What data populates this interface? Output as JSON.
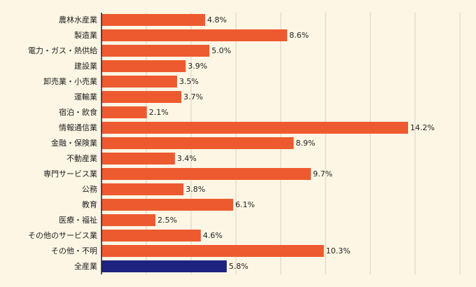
{
  "chart_data": {
    "type": "bar",
    "orientation": "horizontal",
    "title": "",
    "xlabel": "",
    "ylabel": "",
    "xlim": [
      0,
      16.6
    ],
    "grid": true,
    "categories": [
      "農林水産業",
      "製造業",
      "電力・ガス・熱供給",
      "建設業",
      "卸売業・小売業",
      "運輸業",
      "宿泊・飲食",
      "情報通信業",
      "金融・保険業",
      "不動産業",
      "専門サービス業",
      "公務",
      "教育",
      "医療・福祉",
      "その他のサービス業",
      "その他・不明",
      "全産業"
    ],
    "values": [
      4.8,
      8.6,
      5.0,
      3.9,
      3.5,
      3.7,
      2.1,
      14.2,
      8.9,
      3.4,
      9.7,
      3.8,
      6.1,
      2.5,
      4.6,
      10.3,
      5.8
    ],
    "value_labels": [
      "4.8%",
      "8.6%",
      "5.0%",
      "3.9%",
      "3.5%",
      "3.7%",
      "2.1%",
      "14.2%",
      "8.9%",
      "3.4%",
      "9.7%",
      "3.8%",
      "6.1%",
      "2.5%",
      "4.6%",
      "10.3%",
      "5.8%"
    ],
    "colors": {
      "bar": "#ee5a2f",
      "highlight": "#1f2380",
      "grid": "#d9d3c4",
      "axis": "#222222",
      "background": "#fdf6e4"
    },
    "highlight_category": "全産業"
  }
}
